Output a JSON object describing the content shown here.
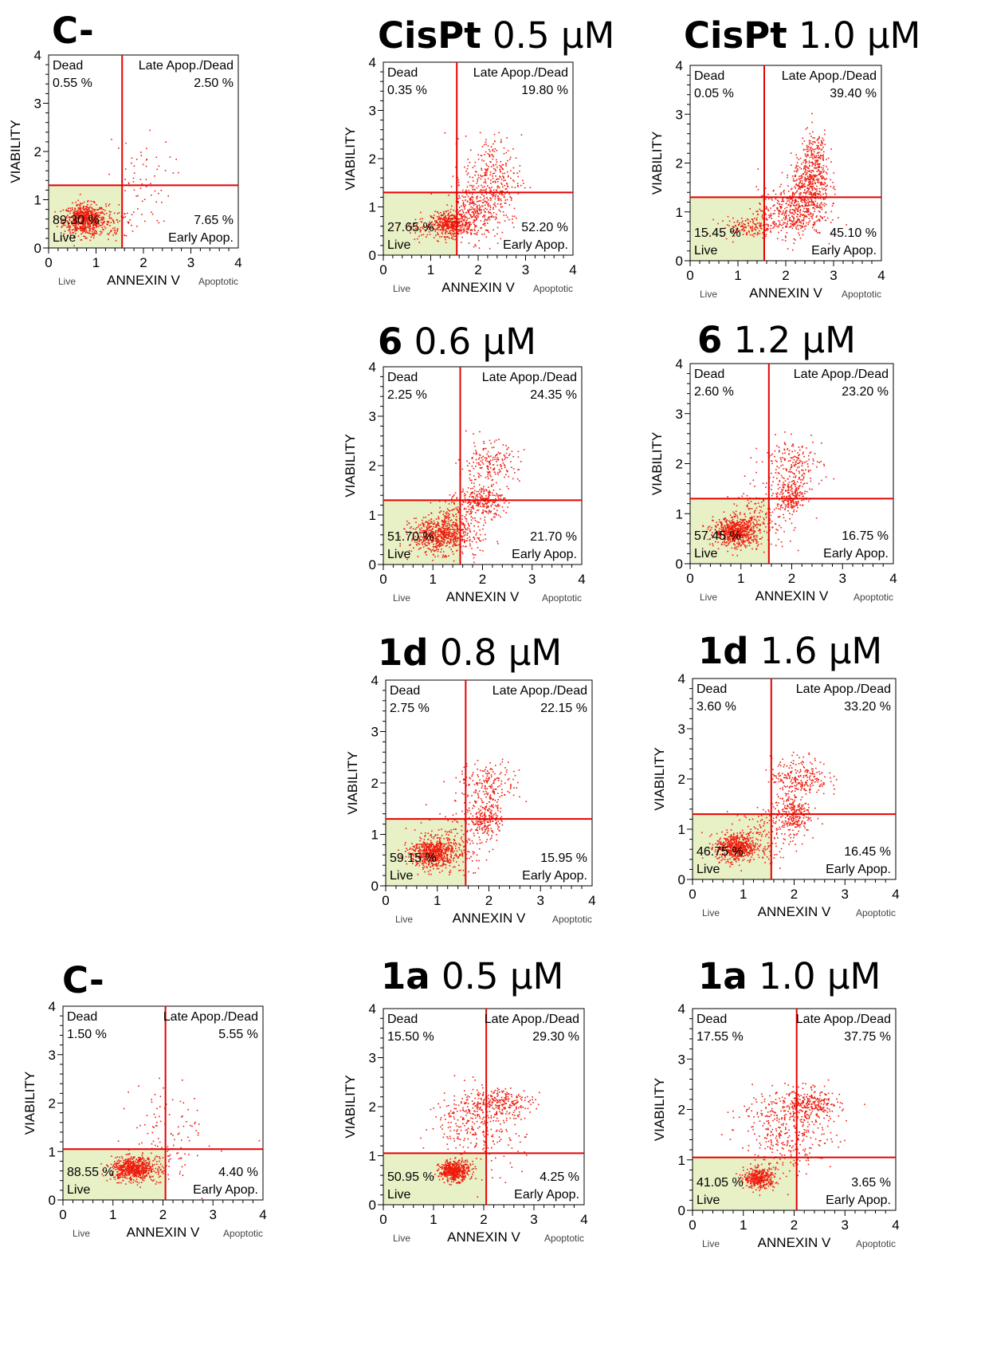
{
  "chart_data": [
    {
      "type": "scatter",
      "title_bold": "C-",
      "title_rest": "",
      "xlabel": "ANNEXIN V",
      "ylabel": "VIABILITY",
      "x_left_label": "Live",
      "x_right_label": "Apoptotic",
      "xlim": [
        0,
        4
      ],
      "ylim": [
        0,
        4
      ],
      "x_ticks": [
        "0",
        "1",
        "2",
        "3",
        "4"
      ],
      "y_ticks": [
        "0",
        "1",
        "2",
        "3",
        "4"
      ],
      "gate": {
        "x": 1.55,
        "y": 1.3
      },
      "quadrants": {
        "tl": {
          "name": "Dead",
          "value": "0.55 %"
        },
        "tr": {
          "name": "Late Apop./Dead",
          "value": "2.50 %"
        },
        "bl": {
          "name": "Live",
          "value": "89.30 %"
        },
        "br": {
          "name": "Early Apop.",
          "value": "7.65 %"
        }
      },
      "clusters": [
        {
          "x": 0.75,
          "y": 0.6,
          "sx": 0.22,
          "sy": 0.16,
          "n": 650
        },
        {
          "x": 1.3,
          "y": 0.55,
          "sx": 0.3,
          "sy": 0.2,
          "n": 90
        },
        {
          "x": 1.9,
          "y": 1.4,
          "sx": 0.35,
          "sy": 0.45,
          "n": 60
        }
      ]
    },
    {
      "type": "scatter",
      "title_bold": "CisPt",
      "title_rest": " 0.5 μM",
      "xlabel": "ANNEXIN V",
      "ylabel": "VIABILITY",
      "x_left_label": "Live",
      "x_right_label": "Apoptotic",
      "xlim": [
        0,
        4
      ],
      "ylim": [
        0,
        4
      ],
      "x_ticks": [
        "0",
        "1",
        "2",
        "3",
        "4"
      ],
      "y_ticks": [
        "0",
        "1",
        "2",
        "3",
        "4"
      ],
      "gate": {
        "x": 1.55,
        "y": 1.3
      },
      "quadrants": {
        "tl": {
          "name": "Dead",
          "value": "0.35 %"
        },
        "tr": {
          "name": "Late Apop./Dead",
          "value": "19.80 %"
        },
        "bl": {
          "name": "Live",
          "value": "27.65 %"
        },
        "br": {
          "name": "Early Apop.",
          "value": "52.20 %"
        }
      },
      "clusters": [
        {
          "x": 1.4,
          "y": 0.65,
          "sx": 0.2,
          "sy": 0.12,
          "n": 380
        },
        {
          "x": 1.9,
          "y": 0.9,
          "sx": 0.3,
          "sy": 0.3,
          "n": 350
        },
        {
          "x": 2.3,
          "y": 1.6,
          "sx": 0.3,
          "sy": 0.45,
          "n": 300
        },
        {
          "x": 0.9,
          "y": 0.6,
          "sx": 0.25,
          "sy": 0.12,
          "n": 60
        }
      ]
    },
    {
      "type": "scatter",
      "title_bold": "CisPt",
      "title_rest": " 1.0 μM",
      "xlabel": "ANNEXIN V",
      "ylabel": "VIABILITY",
      "x_left_label": "Live",
      "x_right_label": "Apoptotic",
      "xlim": [
        0,
        4
      ],
      "ylim": [
        0,
        4
      ],
      "x_ticks": [
        "0",
        "1",
        "2",
        "3",
        "4"
      ],
      "y_ticks": [
        "0",
        "1",
        "2",
        "3",
        "4"
      ],
      "gate": {
        "x": 1.55,
        "y": 1.3
      },
      "quadrants": {
        "tl": {
          "name": "Dead",
          "value": "0.05 %"
        },
        "tr": {
          "name": "Late Apop./Dead",
          "value": "39.40 %"
        },
        "bl": {
          "name": "Live",
          "value": "15.45 %"
        },
        "br": {
          "name": "Early Apop.",
          "value": "45.10 %"
        }
      },
      "clusters": [
        {
          "x": 1.2,
          "y": 0.7,
          "sx": 0.3,
          "sy": 0.1,
          "n": 150
        },
        {
          "x": 2.1,
          "y": 1.0,
          "sx": 0.35,
          "sy": 0.25,
          "n": 420
        },
        {
          "x": 2.5,
          "y": 1.55,
          "sx": 0.2,
          "sy": 0.3,
          "n": 400
        },
        {
          "x": 2.6,
          "y": 2.2,
          "sx": 0.15,
          "sy": 0.25,
          "n": 150
        }
      ]
    },
    {
      "type": "scatter",
      "title_bold": "6",
      "title_rest": " 0.6 μM",
      "xlabel": "ANNEXIN V",
      "ylabel": "VIABILITY",
      "x_left_label": "Live",
      "x_right_label": "Apoptotic",
      "xlim": [
        0,
        4
      ],
      "ylim": [
        0,
        4
      ],
      "x_ticks": [
        "0",
        "1",
        "2",
        "3",
        "4"
      ],
      "y_ticks": [
        "0",
        "1",
        "2",
        "3",
        "4"
      ],
      "gate": {
        "x": 1.55,
        "y": 1.3
      },
      "quadrants": {
        "tl": {
          "name": "Dead",
          "value": "2.25 %"
        },
        "tr": {
          "name": "Late Apop./Dead",
          "value": "24.35 %"
        },
        "bl": {
          "name": "Live",
          "value": "51.70 %"
        },
        "br": {
          "name": "Early Apop.",
          "value": "21.70 %"
        }
      },
      "clusters": [
        {
          "x": 1.1,
          "y": 0.6,
          "sx": 0.28,
          "sy": 0.18,
          "n": 600
        },
        {
          "x": 1.6,
          "y": 0.9,
          "sx": 0.3,
          "sy": 0.3,
          "n": 200
        },
        {
          "x": 2.0,
          "y": 1.3,
          "sx": 0.22,
          "sy": 0.15,
          "n": 220
        },
        {
          "x": 2.1,
          "y": 2.0,
          "sx": 0.3,
          "sy": 0.25,
          "n": 200
        }
      ]
    },
    {
      "type": "scatter",
      "title_bold": "6",
      "title_rest": " 1.2 μM",
      "xlabel": "ANNEXIN V",
      "ylabel": "VIABILITY",
      "x_left_label": "Live",
      "x_right_label": "Apoptotic",
      "xlim": [
        0,
        4
      ],
      "ylim": [
        0,
        4
      ],
      "x_ticks": [
        "0",
        "1",
        "2",
        "3",
        "4"
      ],
      "y_ticks": [
        "0",
        "1",
        "2",
        "3",
        "4"
      ],
      "gate": {
        "x": 1.55,
        "y": 1.3
      },
      "quadrants": {
        "tl": {
          "name": "Dead",
          "value": "2.60 %"
        },
        "tr": {
          "name": "Late Apop./Dead",
          "value": "23.20 %"
        },
        "bl": {
          "name": "Live",
          "value": "57.45 %"
        },
        "br": {
          "name": "Early Apop.",
          "value": "16.75 %"
        }
      },
      "clusters": [
        {
          "x": 0.9,
          "y": 0.65,
          "sx": 0.22,
          "sy": 0.14,
          "n": 650
        },
        {
          "x": 1.4,
          "y": 0.9,
          "sx": 0.3,
          "sy": 0.3,
          "n": 150
        },
        {
          "x": 2.0,
          "y": 1.35,
          "sx": 0.15,
          "sy": 0.15,
          "n": 200
        },
        {
          "x": 2.0,
          "y": 2.0,
          "sx": 0.3,
          "sy": 0.25,
          "n": 200
        }
      ]
    },
    {
      "type": "scatter",
      "title_bold": "1d",
      "title_rest": " 0.8 μM",
      "xlabel": "ANNEXIN V",
      "ylabel": "VIABILITY",
      "x_left_label": "Live",
      "x_right_label": "Apoptotic",
      "xlim": [
        0,
        4
      ],
      "ylim": [
        0,
        4
      ],
      "x_ticks": [
        "0",
        "1",
        "2",
        "3",
        "4"
      ],
      "y_ticks": [
        "0",
        "1",
        "2",
        "3",
        "4"
      ],
      "gate": {
        "x": 1.55,
        "y": 1.3
      },
      "quadrants": {
        "tl": {
          "name": "Dead",
          "value": "2.75 %"
        },
        "tr": {
          "name": "Late Apop./Dead",
          "value": "22.15 %"
        },
        "bl": {
          "name": "Live",
          "value": "59.15 %"
        },
        "br": {
          "name": "Early Apop.",
          "value": "15.95 %"
        }
      },
      "clusters": [
        {
          "x": 0.9,
          "y": 0.65,
          "sx": 0.22,
          "sy": 0.15,
          "n": 650
        },
        {
          "x": 1.4,
          "y": 0.9,
          "sx": 0.3,
          "sy": 0.3,
          "n": 150
        },
        {
          "x": 1.95,
          "y": 1.35,
          "sx": 0.15,
          "sy": 0.2,
          "n": 200
        },
        {
          "x": 2.0,
          "y": 2.0,
          "sx": 0.3,
          "sy": 0.2,
          "n": 180
        }
      ]
    },
    {
      "type": "scatter",
      "title_bold": "1d",
      "title_rest": " 1.6 μM",
      "xlabel": "ANNEXIN V",
      "ylabel": "VIABILITY",
      "x_left_label": "Live",
      "x_right_label": "Apoptotic",
      "xlim": [
        0,
        4
      ],
      "ylim": [
        0,
        4
      ],
      "x_ticks": [
        "0",
        "1",
        "2",
        "3",
        "4"
      ],
      "y_ticks": [
        "0",
        "1",
        "2",
        "3",
        "4"
      ],
      "gate": {
        "x": 1.55,
        "y": 1.3
      },
      "quadrants": {
        "tl": {
          "name": "Dead",
          "value": "3.60 %"
        },
        "tr": {
          "name": "Late Apop./Dead",
          "value": "33.20 %"
        },
        "bl": {
          "name": "Live",
          "value": "46.75 %"
        },
        "br": {
          "name": "Early Apop.",
          "value": "16.45 %"
        }
      },
      "clusters": [
        {
          "x": 0.85,
          "y": 0.65,
          "sx": 0.2,
          "sy": 0.14,
          "n": 550
        },
        {
          "x": 1.4,
          "y": 0.9,
          "sx": 0.3,
          "sy": 0.3,
          "n": 150
        },
        {
          "x": 1.95,
          "y": 1.3,
          "sx": 0.18,
          "sy": 0.18,
          "n": 240
        },
        {
          "x": 2.1,
          "y": 2.05,
          "sx": 0.28,
          "sy": 0.2,
          "n": 250
        }
      ]
    },
    {
      "type": "scatter",
      "title_bold": "C-",
      "title_rest": "",
      "xlabel": "ANNEXIN V",
      "ylabel": "VIABILITY",
      "x_left_label": "Live",
      "x_right_label": "Apoptotic",
      "xlim": [
        0,
        4
      ],
      "ylim": [
        0,
        4
      ],
      "x_ticks": [
        "0",
        "1",
        "2",
        "3",
        "4"
      ],
      "y_ticks": [
        "0",
        "1",
        "2",
        "3",
        "4"
      ],
      "gate": {
        "x": 2.05,
        "y": 1.05
      },
      "quadrants": {
        "tl": {
          "name": "Dead",
          "value": "1.50 %"
        },
        "tr": {
          "name": "Late Apop./Dead",
          "value": "5.55 %"
        },
        "bl": {
          "name": "Live",
          "value": "88.55 %"
        },
        "br": {
          "name": "Early Apop.",
          "value": "4.40 %"
        }
      },
      "clusters": [
        {
          "x": 1.4,
          "y": 0.65,
          "sx": 0.22,
          "sy": 0.12,
          "n": 650
        },
        {
          "x": 2.0,
          "y": 0.8,
          "sx": 0.3,
          "sy": 0.25,
          "n": 60
        },
        {
          "x": 2.2,
          "y": 1.6,
          "sx": 0.4,
          "sy": 0.4,
          "n": 70
        }
      ]
    },
    {
      "type": "scatter",
      "title_bold": "1a",
      "title_rest": " 0.5 μM",
      "xlabel": "ANNEXIN V",
      "ylabel": "VIABILITY",
      "x_left_label": "Live",
      "x_right_label": "Apoptotic",
      "xlim": [
        0,
        4
      ],
      "ylim": [
        0,
        4
      ],
      "x_ticks": [
        "0",
        "1",
        "2",
        "3",
        "4"
      ],
      "y_ticks": [
        "0",
        "1",
        "2",
        "3",
        "4"
      ],
      "gate": {
        "x": 2.05,
        "y": 1.05
      },
      "quadrants": {
        "tl": {
          "name": "Dead",
          "value": "15.50 %"
        },
        "tr": {
          "name": "Late Apop./Dead",
          "value": "29.30 %"
        },
        "bl": {
          "name": "Live",
          "value": "50.95 %"
        },
        "br": {
          "name": "Early Apop.",
          "value": "4.25 %"
        }
      },
      "clusters": [
        {
          "x": 1.4,
          "y": 0.7,
          "sx": 0.15,
          "sy": 0.1,
          "n": 480
        },
        {
          "x": 2.25,
          "y": 2.1,
          "sx": 0.35,
          "sy": 0.15,
          "n": 250
        },
        {
          "x": 2.0,
          "y": 1.5,
          "sx": 0.4,
          "sy": 0.4,
          "n": 200
        },
        {
          "x": 1.5,
          "y": 1.7,
          "sx": 0.3,
          "sy": 0.3,
          "n": 100
        }
      ]
    },
    {
      "type": "scatter",
      "title_bold": "1a",
      "title_rest": " 1.0 μM",
      "xlabel": "ANNEXIN V",
      "ylabel": "VIABILITY",
      "x_left_label": "Live",
      "x_right_label": "Apoptotic",
      "xlim": [
        0,
        4
      ],
      "ylim": [
        0,
        4
      ],
      "x_ticks": [
        "0",
        "1",
        "2",
        "3",
        "4"
      ],
      "y_ticks": [
        "0",
        "1",
        "2",
        "3",
        "4"
      ],
      "gate": {
        "x": 2.05,
        "y": 1.05
      },
      "quadrants": {
        "tl": {
          "name": "Dead",
          "value": "17.55 %"
        },
        "tr": {
          "name": "Late Apop./Dead",
          "value": "37.75 %"
        },
        "bl": {
          "name": "Live",
          "value": "41.05 %"
        },
        "br": {
          "name": "Early Apop.",
          "value": "3.65 %"
        }
      },
      "clusters": [
        {
          "x": 1.3,
          "y": 0.65,
          "sx": 0.15,
          "sy": 0.1,
          "n": 380
        },
        {
          "x": 2.3,
          "y": 2.1,
          "sx": 0.3,
          "sy": 0.15,
          "n": 280
        },
        {
          "x": 2.0,
          "y": 1.5,
          "sx": 0.4,
          "sy": 0.4,
          "n": 260
        },
        {
          "x": 1.5,
          "y": 1.8,
          "sx": 0.3,
          "sy": 0.3,
          "n": 120
        }
      ]
    }
  ]
}
